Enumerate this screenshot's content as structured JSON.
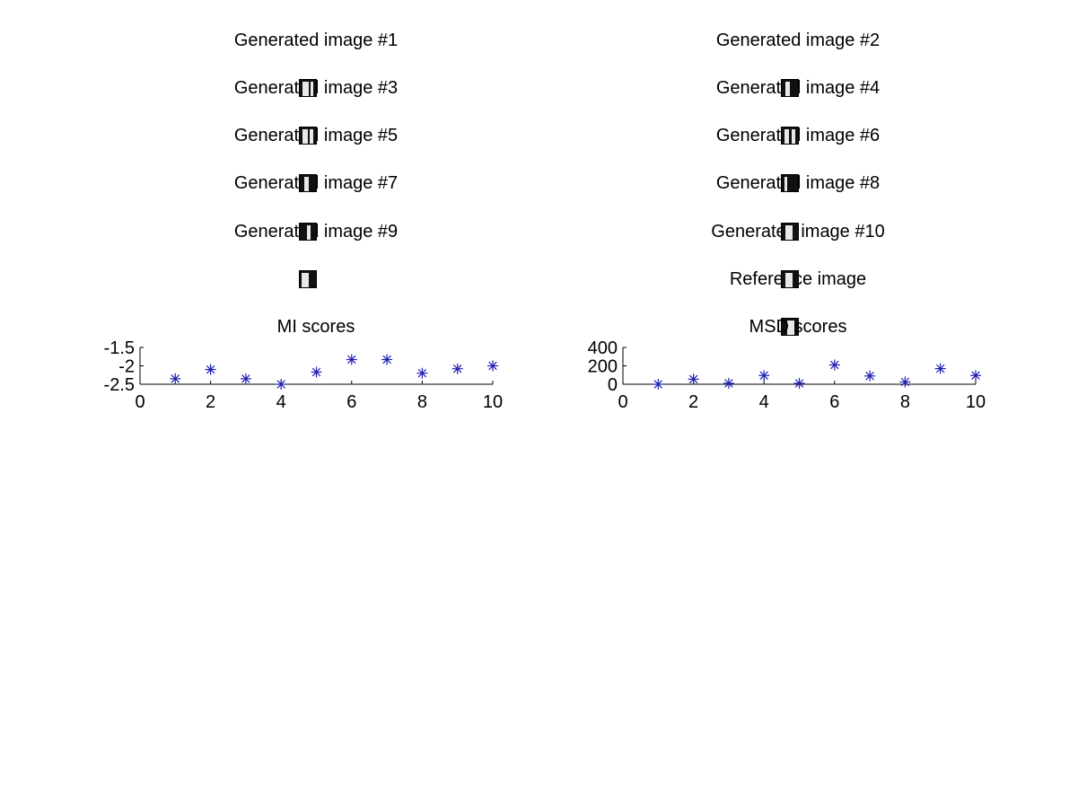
{
  "panels": {
    "generated": [
      "Generated image #1",
      "Generated image #2",
      "Generated image #3",
      "Generated image #4",
      "Generated image #5",
      "Generated image #6",
      "Generated image #7",
      "Generated image #8",
      "Generated image #9",
      "Generated image #10"
    ],
    "reference": "Reference image"
  },
  "chart_data": [
    {
      "type": "scatter",
      "title": "MI scores",
      "xlabel": "",
      "ylabel": "",
      "x": [
        1,
        2,
        3,
        4,
        5,
        6,
        7,
        8,
        9,
        10
      ],
      "y": [
        -2.35,
        -2.1,
        -2.35,
        -2.5,
        -2.17,
        -1.83,
        -1.83,
        -2.2,
        -2.08,
        -2.0
      ],
      "xlim": [
        0,
        10
      ],
      "ylim": [
        -2.5,
        -1.5
      ],
      "xticks": [
        "0",
        "2",
        "4",
        "6",
        "8",
        "10"
      ],
      "yticks": [
        "-1.5",
        "-2",
        "-2.5"
      ],
      "marker_color": "#1f1fb4",
      "marker": "asterisk",
      "grid": false
    },
    {
      "type": "scatter",
      "title": "MSD scores",
      "xlabel": "",
      "ylabel": "",
      "x": [
        1,
        2,
        3,
        4,
        5,
        6,
        7,
        8,
        9,
        10
      ],
      "y": [
        0,
        55,
        10,
        95,
        10,
        210,
        90,
        25,
        170,
        95
      ],
      "xlim": [
        0,
        10
      ],
      "ylim": [
        0,
        400
      ],
      "xticks": [
        "0",
        "2",
        "4",
        "6",
        "8",
        "10"
      ],
      "yticks": [
        "400",
        "200",
        "0"
      ],
      "marker_color": "#1f1fb4",
      "marker": "asterisk",
      "grid": false
    }
  ]
}
